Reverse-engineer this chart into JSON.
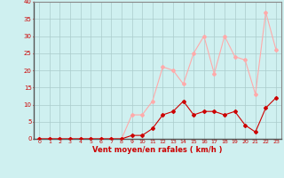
{
  "x": [
    0,
    1,
    2,
    3,
    4,
    5,
    6,
    7,
    8,
    9,
    10,
    11,
    12,
    13,
    14,
    15,
    16,
    17,
    18,
    19,
    20,
    21,
    22,
    23
  ],
  "y_mean": [
    0,
    0,
    0,
    0,
    0,
    0,
    0,
    0,
    0,
    1,
    1,
    3,
    7,
    8,
    11,
    7,
    8,
    8,
    7,
    8,
    4,
    2,
    9,
    12
  ],
  "y_gust": [
    0,
    0,
    0,
    0,
    0,
    0,
    0,
    0,
    0,
    7,
    7,
    11,
    21,
    20,
    16,
    25,
    30,
    19,
    30,
    24,
    23,
    13,
    37,
    26
  ],
  "mean_color": "#cc0000",
  "gust_color": "#ffaaaa",
  "bg_color": "#cff0f0",
  "grid_color": "#aacccc",
  "xlabel": "Vent moyen/en rafales ( km/h )",
  "xlabel_color": "#cc0000",
  "tick_color": "#cc0000",
  "ylim": [
    0,
    40
  ],
  "yticks": [
    0,
    5,
    10,
    15,
    20,
    25,
    30,
    35,
    40
  ],
  "xlim": [
    -0.5,
    23.5
  ]
}
